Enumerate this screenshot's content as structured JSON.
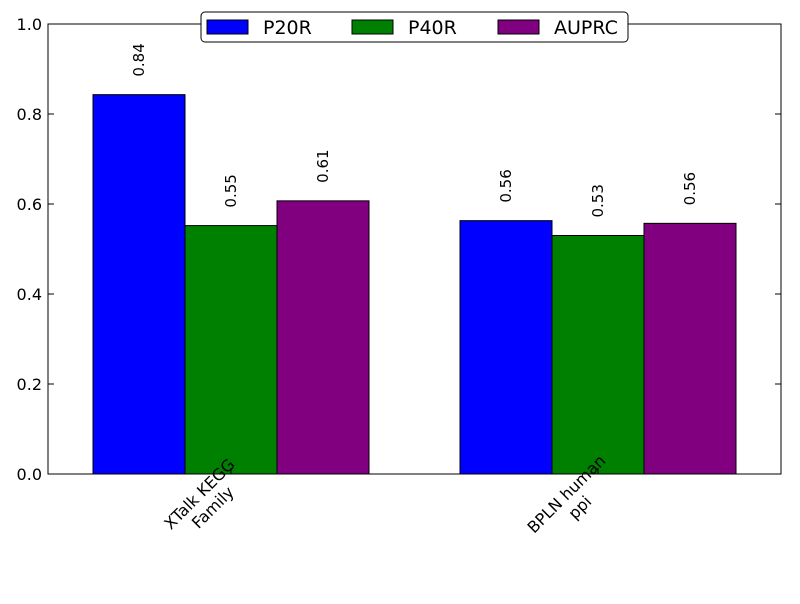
{
  "chart_data": {
    "type": "bar",
    "categories": [
      "XTalk KEGG\nFamily",
      "BPLN human\nppi"
    ],
    "series": [
      {
        "name": "P20R",
        "color": "#0000ff",
        "values": [
          0.843,
          0.563
        ],
        "labels": [
          "0.84",
          "0.56"
        ]
      },
      {
        "name": "P40R",
        "color": "#008000",
        "values": [
          0.552,
          0.53
        ],
        "labels": [
          "0.55",
          "0.53"
        ]
      },
      {
        "name": "AUPRC",
        "color": "#800080",
        "values": [
          0.607,
          0.557
        ],
        "labels": [
          "0.61",
          "0.56"
        ]
      }
    ],
    "ylim": [
      0,
      1.0
    ],
    "yticks": [
      "0.0",
      "0.2",
      "0.4",
      "0.6",
      "0.8",
      "1.0"
    ],
    "title": "",
    "xlabel": "",
    "ylabel": "",
    "legend_position": "top-center",
    "grid": false
  }
}
